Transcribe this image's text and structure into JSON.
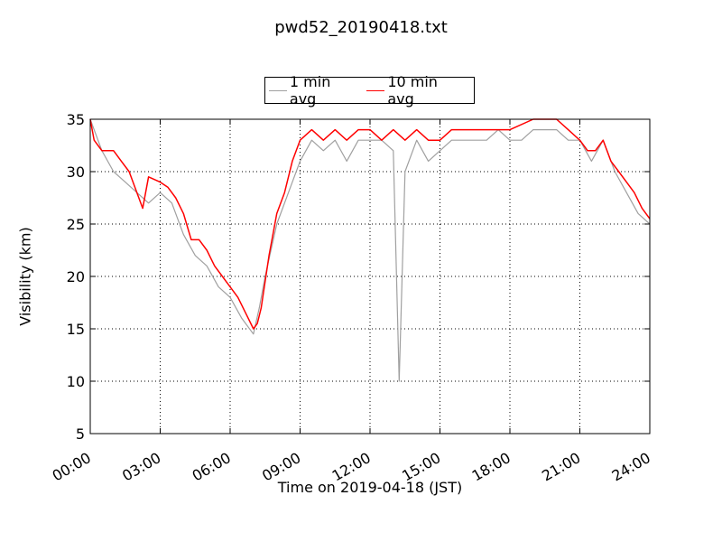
{
  "chart_data": {
    "type": "line",
    "title": "pwd52_20190418.txt",
    "xlabel": "Time on 2019-04-18 (JST)",
    "ylabel": "Visibility (km)",
    "xlim": [
      "00:00",
      "24:00"
    ],
    "ylim": [
      5,
      35
    ],
    "x_ticks": [
      "00:00",
      "03:00",
      "06:00",
      "09:00",
      "12:00",
      "15:00",
      "18:00",
      "21:00",
      "24:00"
    ],
    "y_ticks": [
      5,
      10,
      15,
      20,
      25,
      30,
      35
    ],
    "grid": true,
    "legend_position": "top-center",
    "series": [
      {
        "name": "1 min avg",
        "color": "#a0a0a0",
        "x": [
          "00:00",
          "00:30",
          "01:00",
          "01:30",
          "02:00",
          "02:30",
          "03:00",
          "03:30",
          "04:00",
          "04:30",
          "05:00",
          "05:30",
          "06:00",
          "06:30",
          "07:00",
          "07:15",
          "07:30",
          "08:00",
          "08:30",
          "09:00",
          "09:30",
          "10:00",
          "10:30",
          "11:00",
          "11:30",
          "12:00",
          "12:30",
          "13:00",
          "13:15",
          "13:30",
          "14:00",
          "14:30",
          "15:00",
          "15:30",
          "16:00",
          "16:30",
          "17:00",
          "17:30",
          "18:00",
          "18:30",
          "19:00",
          "19:30",
          "20:00",
          "20:30",
          "21:00",
          "21:30",
          "22:00",
          "22:30",
          "23:00",
          "23:30",
          "24:00"
        ],
        "y": [
          35,
          32,
          30,
          29,
          28,
          27,
          28,
          27,
          24,
          22,
          21,
          19,
          18,
          16,
          14.5,
          17,
          20,
          25,
          28,
          31,
          33,
          32,
          33,
          31,
          33,
          33,
          33,
          32,
          10,
          30,
          33,
          31,
          32,
          33,
          33,
          33,
          33,
          34,
          33,
          33,
          34,
          34,
          34,
          33,
          33,
          31,
          33,
          30,
          28,
          26,
          25
        ]
      },
      {
        "name": "10 min avg",
        "color": "#ff0000",
        "x": [
          "00:00",
          "00:10",
          "00:30",
          "01:00",
          "01:20",
          "01:40",
          "02:00",
          "02:15",
          "02:30",
          "03:00",
          "03:20",
          "03:40",
          "04:00",
          "04:20",
          "04:40",
          "05:00",
          "05:20",
          "05:40",
          "06:00",
          "06:20",
          "06:40",
          "07:00",
          "07:10",
          "07:20",
          "07:40",
          "08:00",
          "08:20",
          "08:40",
          "09:00",
          "09:30",
          "10:00",
          "10:30",
          "11:00",
          "11:30",
          "12:00",
          "12:30",
          "13:00",
          "13:30",
          "14:00",
          "14:30",
          "15:00",
          "15:30",
          "16:00",
          "17:00",
          "18:00",
          "19:00",
          "20:00",
          "20:30",
          "21:00",
          "21:20",
          "21:40",
          "22:00",
          "22:20",
          "22:40",
          "23:00",
          "23:20",
          "23:40",
          "24:00"
        ],
        "y": [
          35,
          33,
          32,
          32,
          31,
          30,
          28,
          26.5,
          29.5,
          29,
          28.5,
          27.5,
          26,
          23.5,
          23.5,
          22.5,
          21,
          20,
          19,
          18,
          16.5,
          15,
          15.5,
          17,
          22,
          26,
          28,
          31,
          33,
          34,
          33,
          34,
          33,
          34,
          34,
          33,
          34,
          33,
          34,
          33,
          33,
          34,
          34,
          34,
          34,
          35,
          35,
          34,
          33,
          32,
          32,
          33,
          31,
          30,
          29,
          28,
          26.5,
          25.5
        ]
      }
    ]
  }
}
